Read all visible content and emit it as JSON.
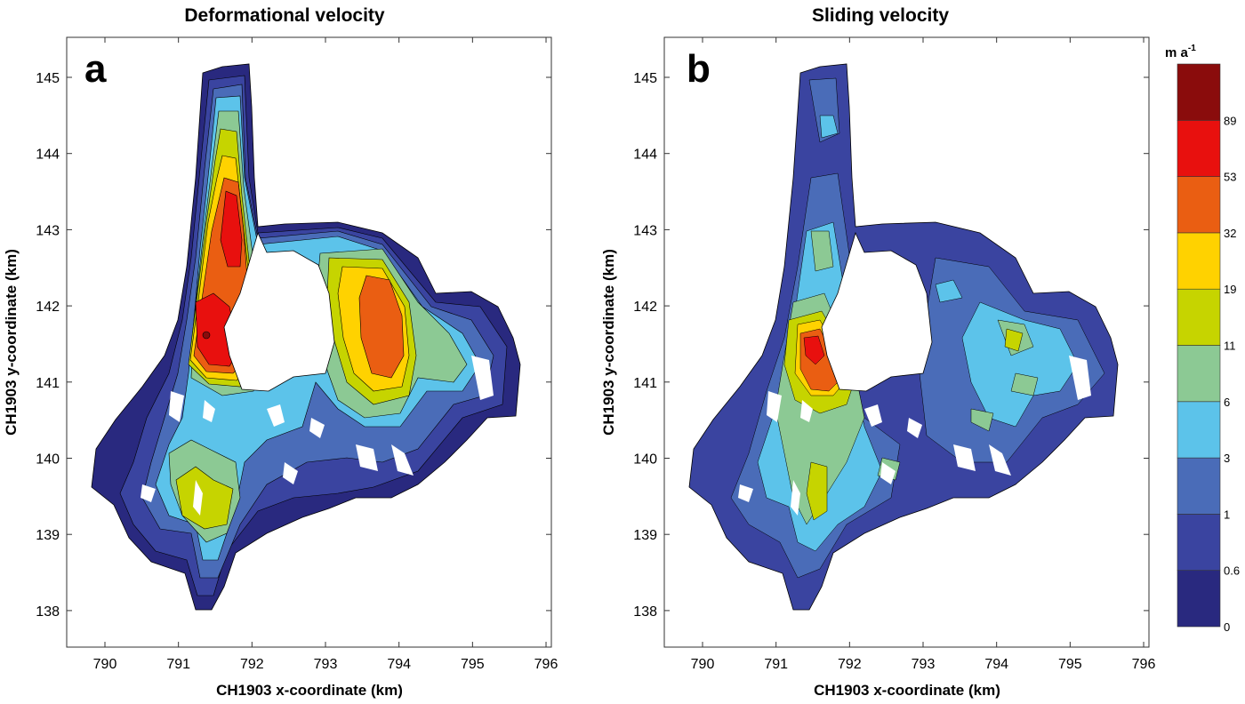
{
  "chart_data": [
    {
      "type": "heatmap",
      "subtype": "filled-contour-map",
      "panel_label": "a",
      "title": "Deformational velocity",
      "xlabel": "CH1903 x-coordinate (km)",
      "ylabel": "CH1903 y-coordinate (km)",
      "xlim": [
        789.5,
        796
      ],
      "ylim": [
        137.5,
        145.5
      ],
      "xticks": [
        "790",
        "791",
        "792",
        "793",
        "794",
        "795",
        "796"
      ],
      "yticks": [
        "138",
        "139",
        "140",
        "141",
        "142",
        "143",
        "144",
        "145"
      ],
      "max_regions": "red (53-89 m/a) in western tongue near x 791.2-791.6, y 141.2-143.5; orange (32-53) core of eastern lobe near x 793.8, y 141.6-142.4"
    },
    {
      "type": "heatmap",
      "subtype": "filled-contour-map",
      "panel_label": "b",
      "title": "Sliding velocity",
      "xlabel": "CH1903 x-coordinate (km)",
      "ylabel": "CH1903 y-coordinate (km)",
      "xlim": [
        789.5,
        796
      ],
      "ylim": [
        137.5,
        145.5
      ],
      "xticks": [
        "790",
        "791",
        "792",
        "793",
        "794",
        "795",
        "796"
      ],
      "yticks": [
        "138",
        "139",
        "140",
        "141",
        "142",
        "143",
        "144",
        "145"
      ],
      "max_regions": "red (53-89 m/a) near x 791.3, y 141.2; mostly 1-6 m/a elsewhere"
    }
  ],
  "colorbar": {
    "unit_base": "m a",
    "unit_exp": "-1",
    "levels": [
      "0",
      "0.6",
      "1",
      "3",
      "6",
      "11",
      "19",
      "32",
      "53",
      "89"
    ],
    "colors": [
      "#29297f",
      "#3a44a0",
      "#4a6cb8",
      "#5cc3ea",
      "#8cc994",
      "#c6d400",
      "#ffd200",
      "#ea5e12",
      "#e8100e",
      "#8a0c0c"
    ]
  }
}
